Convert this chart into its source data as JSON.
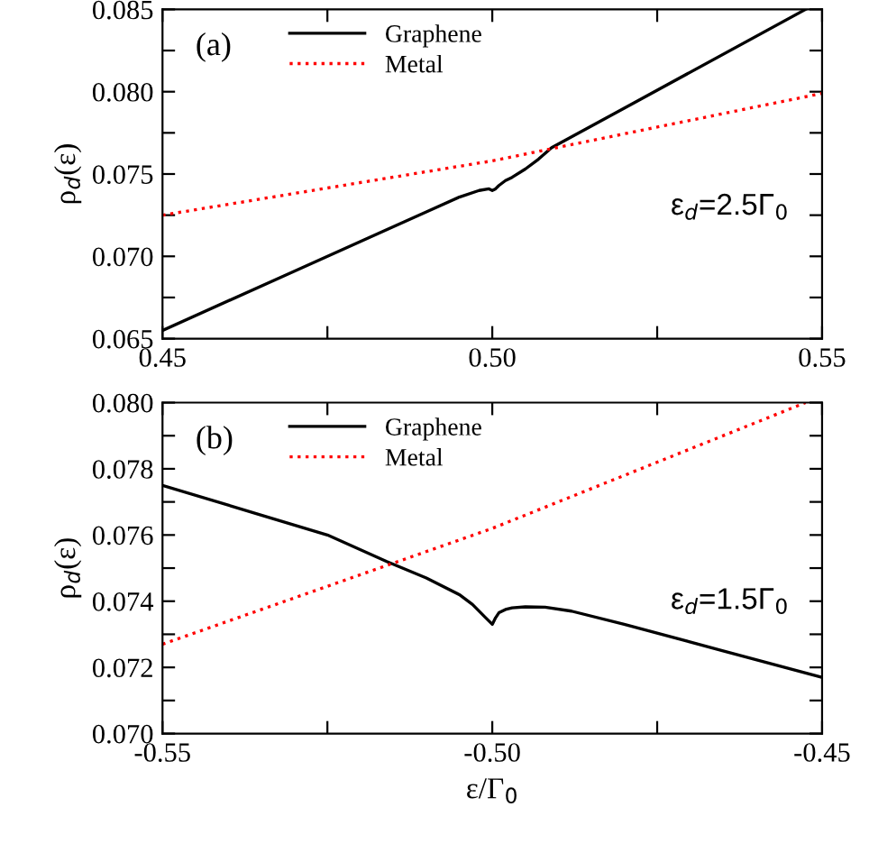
{
  "chart_data": [
    {
      "type": "line",
      "xlim": [
        0.45,
        0.55
      ],
      "ylim": [
        0.065,
        0.085
      ],
      "xticks": [
        {
          "value": 0.45,
          "label": "0.45"
        },
        {
          "value": 0.475,
          "label": null
        },
        {
          "value": 0.5,
          "label": "0.50"
        },
        {
          "value": 0.525,
          "label": null
        },
        {
          "value": 0.55,
          "label": "0.55"
        }
      ],
      "yticks": [
        {
          "value": 0.065,
          "label": "0.065"
        },
        {
          "value": 0.0675,
          "label": null
        },
        {
          "value": 0.07,
          "label": "0.070"
        },
        {
          "value": 0.0725,
          "label": null
        },
        {
          "value": 0.075,
          "label": "0.075"
        },
        {
          "value": 0.0775,
          "label": null
        },
        {
          "value": 0.08,
          "label": "0.080"
        },
        {
          "value": 0.0825,
          "label": null
        },
        {
          "value": 0.085,
          "label": "0.085"
        }
      ],
      "ylabel": "ρ$_{d}$(ε)",
      "legend": "top left",
      "grid": false,
      "annotations": [
        "(a)",
        "ε$_{d}$=2.5Γ$_{0}$"
      ],
      "series": [
        {
          "name": "Graphene",
          "color": "#000000",
          "line_style": "solid",
          "x": [
            0.45,
            0.47,
            0.49,
            0.495,
            0.498,
            0.4995,
            0.5,
            0.5005,
            0.501,
            0.502,
            0.503,
            0.505,
            0.507,
            0.509,
            0.52,
            0.5475
          ],
          "values": [
            0.0655,
            0.0691,
            0.0727,
            0.0736,
            0.074,
            0.0741,
            0.074,
            0.0741,
            0.0743,
            0.0746,
            0.0748,
            0.0753,
            0.0759,
            0.0766,
            0.079,
            0.085
          ]
        },
        {
          "name": "Metal",
          "color": "#ff0000",
          "line_style": "dotted",
          "x": [
            0.45,
            0.5,
            0.55
          ],
          "values": [
            0.0725,
            0.0758,
            0.0799
          ]
        }
      ]
    },
    {
      "type": "line",
      "xlim": [
        -0.55,
        -0.45
      ],
      "ylim": [
        0.07,
        0.08
      ],
      "xticks": [
        {
          "value": -0.55,
          "label": "-0.55"
        },
        {
          "value": -0.525,
          "label": null
        },
        {
          "value": -0.5,
          "label": "-0.50"
        },
        {
          "value": -0.475,
          "label": null
        },
        {
          "value": -0.45,
          "label": "-0.45"
        }
      ],
      "yticks": [
        {
          "value": 0.07,
          "label": "0.070"
        },
        {
          "value": 0.071,
          "label": null
        },
        {
          "value": 0.072,
          "label": "0.072"
        },
        {
          "value": 0.073,
          "label": null
        },
        {
          "value": 0.074,
          "label": "0.074"
        },
        {
          "value": 0.075,
          "label": null
        },
        {
          "value": 0.076,
          "label": "0.076"
        },
        {
          "value": 0.077,
          "label": null
        },
        {
          "value": 0.078,
          "label": "0.078"
        },
        {
          "value": 0.079,
          "label": null
        },
        {
          "value": 0.08,
          "label": "0.080"
        }
      ],
      "xlabel": "ε/Γ$_{0}$",
      "ylabel": "ρ$_{d}$(ε)",
      "legend": "top left",
      "grid": false,
      "annotations": [
        "(b)",
        "ε$_{d}$=1.5Γ$_{0}$"
      ],
      "series": [
        {
          "name": "Graphene",
          "color": "#000000",
          "line_style": "solid",
          "x": [
            -0.55,
            -0.535,
            -0.525,
            -0.516,
            -0.51,
            -0.505,
            -0.503,
            -0.501,
            -0.5,
            -0.4995,
            -0.499,
            -0.498,
            -0.497,
            -0.495,
            -0.492,
            -0.488,
            -0.48,
            -0.465,
            -0.45
          ],
          "values": [
            0.0775,
            0.0766,
            0.076,
            0.0752,
            0.0747,
            0.0742,
            0.0739,
            0.0735,
            0.0733,
            0.0735,
            0.07365,
            0.07375,
            0.0738,
            0.07383,
            0.07382,
            0.0737,
            0.0733,
            0.0725,
            0.0717
          ]
        },
        {
          "name": "Metal",
          "color": "#ff0000",
          "line_style": "dotted",
          "x": [
            -0.55,
            -0.5,
            -0.4525
          ],
          "values": [
            0.0727,
            0.0762,
            0.08
          ]
        }
      ]
    }
  ]
}
